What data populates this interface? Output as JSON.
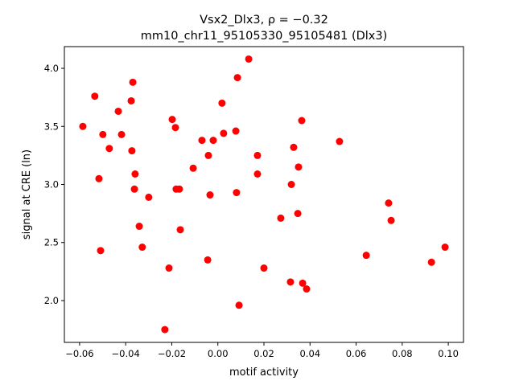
{
  "chart_data": {
    "type": "scatter",
    "title_line1": "Vsx2_Dlx3, ρ = −0.32",
    "title_line2": "mm10_chr11_95105330_95105481 (Dlx3)",
    "xlabel": "motif activity",
    "ylabel": "signal at CRE (ln)",
    "xlim": [
      -0.0666,
      0.1066
    ],
    "ylim": [
      1.64,
      4.187
    ],
    "xticks": [
      -0.06,
      -0.04,
      -0.02,
      0.0,
      0.02,
      0.04,
      0.06,
      0.08,
      0.1
    ],
    "xtick_labels": [
      "−0.06",
      "−0.04",
      "−0.02",
      "0.00",
      "0.02",
      "0.04",
      "0.06",
      "0.08",
      "0.10"
    ],
    "yticks": [
      2.0,
      2.5,
      3.0,
      3.5,
      4.0
    ],
    "ytick_labels": [
      "2.0",
      "2.5",
      "3.0",
      "3.5",
      "4.0"
    ],
    "grid": false,
    "marker_color": "#ff0000",
    "points": [
      [
        -0.0586,
        3.5
      ],
      [
        -0.0534,
        3.76
      ],
      [
        -0.0516,
        3.05
      ],
      [
        -0.0509,
        2.43
      ],
      [
        -0.0499,
        3.43
      ],
      [
        -0.0471,
        3.31
      ],
      [
        -0.0432,
        3.63
      ],
      [
        -0.0418,
        3.43
      ],
      [
        -0.0376,
        3.72
      ],
      [
        -0.0369,
        3.88
      ],
      [
        -0.0373,
        3.29
      ],
      [
        -0.0359,
        3.09
      ],
      [
        -0.0362,
        2.96
      ],
      [
        -0.0341,
        2.64
      ],
      [
        -0.0328,
        2.46
      ],
      [
        -0.03,
        2.89
      ],
      [
        -0.0212,
        2.28
      ],
      [
        -0.023,
        1.75
      ],
      [
        -0.0198,
        3.56
      ],
      [
        -0.0184,
        3.49
      ],
      [
        -0.0181,
        2.96
      ],
      [
        -0.0167,
        2.96
      ],
      [
        -0.0163,
        2.61
      ],
      [
        -0.0107,
        3.14
      ],
      [
        -0.0069,
        3.38
      ],
      [
        -0.0044,
        2.35
      ],
      [
        -0.0041,
        3.25
      ],
      [
        -0.0034,
        2.91
      ],
      [
        -0.002,
        3.38
      ],
      [
        0.0018,
        3.7
      ],
      [
        0.0025,
        3.44
      ],
      [
        0.0078,
        3.46
      ],
      [
        0.0081,
        2.93
      ],
      [
        0.0085,
        3.92
      ],
      [
        0.0092,
        1.96
      ],
      [
        0.0134,
        4.08
      ],
      [
        0.0172,
        3.25
      ],
      [
        0.0172,
        3.09
      ],
      [
        0.02,
        2.28
      ],
      [
        0.0273,
        2.71
      ],
      [
        0.0319,
        3.0
      ],
      [
        0.0315,
        2.16
      ],
      [
        0.0329,
        3.32
      ],
      [
        0.0347,
        2.75
      ],
      [
        0.035,
        3.15
      ],
      [
        0.0364,
        3.55
      ],
      [
        0.0368,
        2.15
      ],
      [
        0.0385,
        2.1
      ],
      [
        0.0528,
        3.37
      ],
      [
        0.0644,
        2.39
      ],
      [
        0.0741,
        2.84
      ],
      [
        0.0752,
        2.69
      ],
      [
        0.0927,
        2.33
      ],
      [
        0.0986,
        2.46
      ]
    ]
  }
}
